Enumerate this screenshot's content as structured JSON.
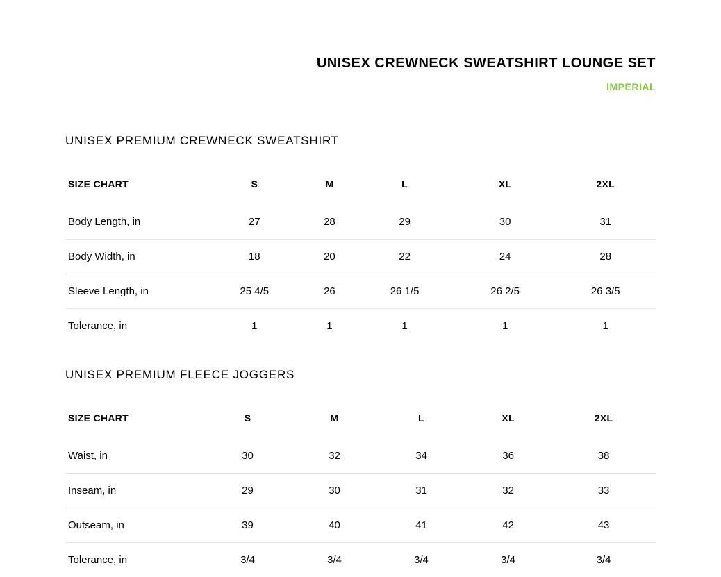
{
  "header": {
    "title": "UNISEX CREWNECK SWEATSHIRT LOUNGE SET",
    "unit_label": "IMPERIAL",
    "accent_color": "#8cc63f"
  },
  "sections": [
    {
      "title": "UNISEX PREMIUM CREWNECK SWEATSHIRT",
      "header_label": "SIZE CHART",
      "columns": [
        "S",
        "M",
        "L",
        "XL",
        "2XL"
      ],
      "rows": [
        {
          "label": "Body Length, in",
          "values": [
            "27",
            "28",
            "29",
            "30",
            "31"
          ]
        },
        {
          "label": "Body Width, in",
          "values": [
            "18",
            "20",
            "22",
            "24",
            "28"
          ]
        },
        {
          "label": "Sleeve Length, in",
          "values": [
            "25 4/5",
            "26",
            "26 1/5",
            "26 2/5",
            "26 3/5"
          ]
        },
        {
          "label": "Tolerance, in",
          "values": [
            "1",
            "1",
            "1",
            "1",
            "1"
          ]
        }
      ]
    },
    {
      "title": "UNISEX PREMIUM FLEECE JOGGERS",
      "header_label": "SIZE CHART",
      "columns": [
        "S",
        "M",
        "L",
        "XL",
        "2XL"
      ],
      "rows": [
        {
          "label": "Waist, in",
          "values": [
            "30",
            "32",
            "34",
            "36",
            "38"
          ]
        },
        {
          "label": "Inseam, in",
          "values": [
            "29",
            "30",
            "31",
            "32",
            "33"
          ]
        },
        {
          "label": "Outseam, in",
          "values": [
            "39",
            "40",
            "41",
            "42",
            "43"
          ]
        },
        {
          "label": "Tolerance, in",
          "values": [
            "3/4",
            "3/4",
            "3/4",
            "3/4",
            "3/4"
          ]
        }
      ]
    }
  ],
  "styling": {
    "background_color": "#ffffff",
    "text_color": "#000000",
    "border_color": "#e5e5e5",
    "title_fontsize": 20,
    "section_title_fontsize": 17,
    "cell_fontsize": 15,
    "header_fontsize": 14,
    "col_widths": [
      "200px",
      "auto",
      "auto",
      "auto",
      "auto",
      "auto"
    ]
  }
}
